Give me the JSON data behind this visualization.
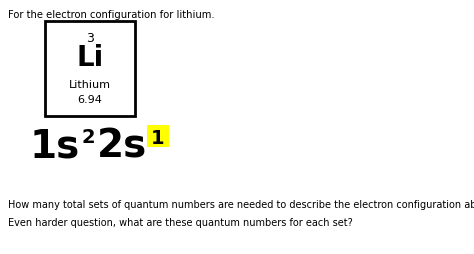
{
  "bg_color": "#ffffff",
  "text_color": "#000000",
  "title_text": "For the electron configuration for lithium.",
  "element_number": "3",
  "element_symbol": "Li",
  "element_name": "Lithium",
  "element_mass": "6.94",
  "highlight_color": "#ffff00",
  "question1": "How many total sets of quantum numbers are needed to describe the electron configuration above?",
  "question2": "Even harder question, what are these quantum numbers for each set?"
}
